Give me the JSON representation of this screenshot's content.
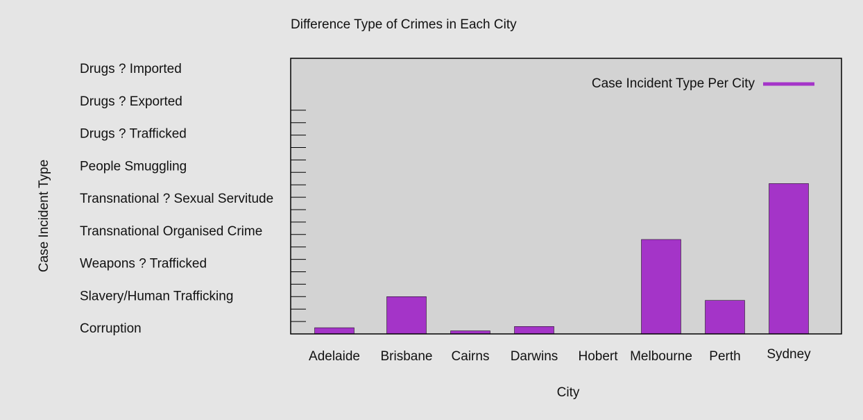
{
  "chart_data": {
    "type": "bar",
    "title": "Difference Type of Crimes in Each City",
    "xlabel": "City",
    "ylabel": "Case Incident Type",
    "categories": [
      "Adelaide",
      "Brisbane",
      "Cairns",
      "Darwins",
      "Hobert",
      "Melbourne",
      "Perth",
      "Sydney"
    ],
    "series": [
      {
        "name": "Case Incident Type Per City",
        "values": [
          0.5,
          3.0,
          0.25,
          0.6,
          0,
          7.6,
          2.7,
          12.1
        ],
        "color": "#a434c8"
      }
    ],
    "ylim": [
      0,
      18
    ],
    "y_tick_step": 1,
    "yticklabels": [
      "Corruption",
      "Slavery/Human Trafficking",
      "Weapons ? Trafficked",
      "Transnational Organised Crime",
      "Transnational ? Sexual Servitude",
      "People Smuggling",
      "Drugs ? Trafficked",
      "Drugs ? Exported",
      "Drugs ? Imported"
    ],
    "legend_position": "top-right",
    "grid": false,
    "plot_background": "#d3d3d3",
    "page_background": "#e5e5e5"
  }
}
